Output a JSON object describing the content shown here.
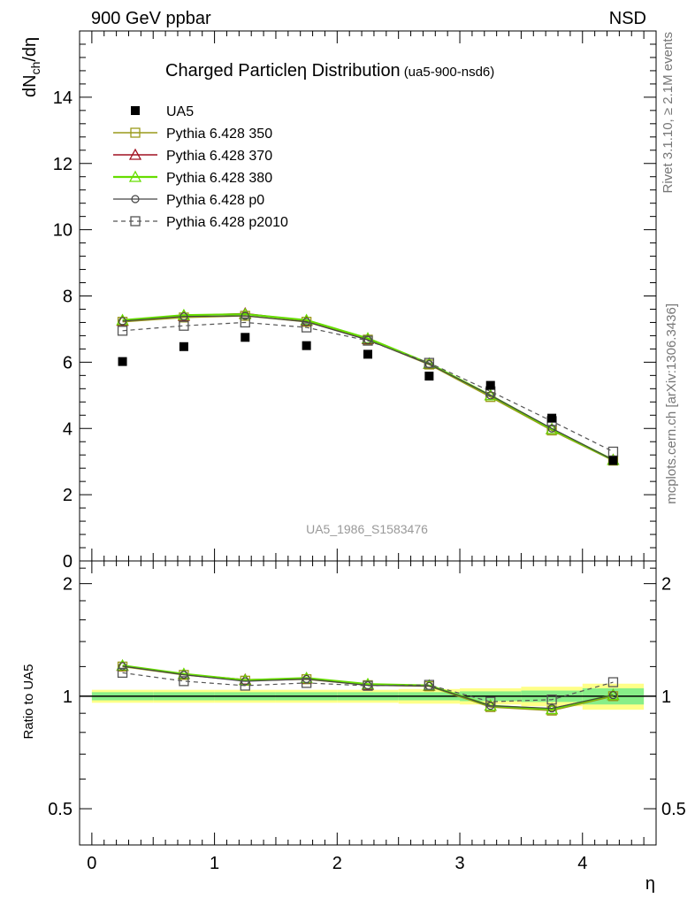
{
  "header": {
    "left": "900 GeV ppbar",
    "right": "NSD"
  },
  "side_labels": {
    "right_top": "Rivet 3.1.10, ≥ 2.1M events",
    "right_bottom": "mcplots.cern.ch [arXiv:1306.3436]"
  },
  "chart_data": {
    "type": "scatter",
    "title": "Charged Particleη Distribution",
    "subtitle": "(ua5-900-nsd6)",
    "watermark": "UA5_1986_S1583476",
    "xlabel": "η",
    "ylabel": "dN_ch/dη",
    "ylabel_main": "dN",
    "ylabel_sub": "ch",
    "ylabel_tail": "/dη",
    "xlim": [
      -0.1,
      4.6
    ],
    "ylim": [
      0,
      16
    ],
    "x_ticks": [
      "0",
      "1",
      "2",
      "3",
      "4"
    ],
    "y_ticks": [
      "0",
      "2",
      "4",
      "6",
      "8",
      "10",
      "12",
      "14"
    ],
    "x": [
      0.25,
      0.75,
      1.25,
      1.75,
      2.25,
      2.75,
      3.25,
      3.75,
      4.25
    ],
    "data": {
      "name": "UA5",
      "values": [
        6.02,
        6.47,
        6.75,
        6.5,
        6.24,
        5.58,
        5.3,
        4.31,
        3.03
      ],
      "color": "#000000"
    },
    "series": [
      {
        "name": "Pythia 6.428 350",
        "values": [
          7.22,
          7.35,
          7.4,
          7.22,
          6.68,
          5.93,
          4.95,
          3.94,
          3.03
        ],
        "color": "#9a9a1a",
        "marker": "square-open",
        "dash": false,
        "width": 1.5
      },
      {
        "name": "Pythia 6.428 370",
        "values": [
          7.25,
          7.4,
          7.47,
          7.25,
          6.7,
          5.95,
          5.0,
          3.98,
          3.05
        ],
        "color": "#a01020",
        "marker": "triangle-open",
        "dash": false,
        "width": 1.5
      },
      {
        "name": "Pythia 6.428 380",
        "values": [
          7.27,
          7.42,
          7.45,
          7.27,
          6.72,
          5.96,
          5.0,
          3.98,
          3.05
        ],
        "color": "#66dd00",
        "marker": "triangle-open",
        "dash": false,
        "width": 2.2
      },
      {
        "name": "Pythia 6.428 p0",
        "values": [
          7.24,
          7.38,
          7.4,
          7.22,
          6.67,
          5.94,
          5.0,
          4.0,
          3.05
        ],
        "color": "#444444",
        "marker": "circle-open",
        "dash": false,
        "width": 1.2
      },
      {
        "name": "Pythia 6.428 p2010",
        "values": [
          6.95,
          7.1,
          7.2,
          7.05,
          6.65,
          5.98,
          5.12,
          4.22,
          3.3
        ],
        "color": "#555555",
        "marker": "square-open",
        "dash": true,
        "width": 1.2
      }
    ],
    "ratio": {
      "ylabel": "Ratio to UA5",
      "y_ticks": [
        "0.5",
        "1",
        "2"
      ],
      "y_tick_values": [
        0.5,
        1,
        2
      ],
      "ylim": [
        0.4,
        2.3
      ],
      "log_scale": true,
      "bands": {
        "x_edges": [
          0.0,
          0.5,
          1.0,
          1.5,
          2.0,
          2.5,
          3.0,
          3.5,
          4.0,
          4.5
        ],
        "stat_halfwidth": [
          0.025,
          0.025,
          0.025,
          0.025,
          0.025,
          0.025,
          0.03,
          0.035,
          0.05
        ],
        "total_halfwidth": [
          0.04,
          0.04,
          0.04,
          0.04,
          0.04,
          0.045,
          0.05,
          0.06,
          0.08
        ],
        "stat_color": "#88ee88",
        "total_color": "#ffff88"
      },
      "series": [
        {
          "name": "Pythia 6.428 350",
          "values": [
            1.2,
            1.14,
            1.1,
            1.11,
            1.07,
            1.063,
            0.935,
            0.915,
            1.0
          ]
        },
        {
          "name": "Pythia 6.428 370",
          "values": [
            1.205,
            1.145,
            1.107,
            1.115,
            1.073,
            1.066,
            0.943,
            0.923,
            1.007
          ]
        },
        {
          "name": "Pythia 6.428 380",
          "values": [
            1.208,
            1.147,
            1.104,
            1.118,
            1.077,
            1.068,
            0.943,
            0.923,
            1.007
          ]
        },
        {
          "name": "Pythia 6.428 p0",
          "values": [
            1.203,
            1.141,
            1.096,
            1.111,
            1.069,
            1.065,
            0.943,
            0.928,
            1.007
          ]
        },
        {
          "name": "Pythia 6.428 p2010",
          "values": [
            1.155,
            1.097,
            1.067,
            1.085,
            1.066,
            1.072,
            0.966,
            0.979,
            1.09
          ]
        }
      ]
    }
  }
}
